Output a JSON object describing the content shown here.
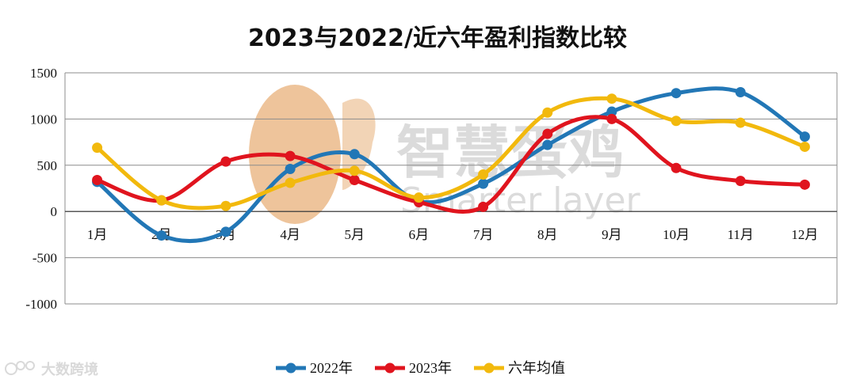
{
  "chart_data": {
    "type": "line",
    "title": "2023与2022/近六年盈利指数比较",
    "categories": [
      "1月",
      "2月",
      "3月",
      "4月",
      "5月",
      "6月",
      "7月",
      "8月",
      "9月",
      "10月",
      "11月",
      "12月"
    ],
    "ylim": [
      -1000,
      1500
    ],
    "yticks": [
      1500,
      1000,
      500,
      0,
      -500,
      -1000
    ],
    "grid": true,
    "legend_position": "bottom",
    "series": [
      {
        "name": "2022年",
        "color": "#2277b6",
        "values": [
          320,
          -260,
          -220,
          460,
          620,
          110,
          300,
          720,
          1080,
          1280,
          1290,
          810
        ]
      },
      {
        "name": "2023年",
        "color": "#e0141e",
        "values": [
          340,
          120,
          540,
          600,
          340,
          100,
          50,
          840,
          1000,
          470,
          330,
          290
        ]
      },
      {
        "name": "六年均值",
        "color": "#f2b90d",
        "values": [
          690,
          120,
          60,
          310,
          440,
          150,
          400,
          1070,
          1220,
          980,
          960,
          700
        ]
      }
    ]
  },
  "watermark": {
    "cn": "智慧蛋鸡",
    "en": "Smarter layer",
    "egg_color": "#e8b07a"
  },
  "corner_logo": {
    "text": "大数跨境",
    "icon": "weibo-icon"
  }
}
